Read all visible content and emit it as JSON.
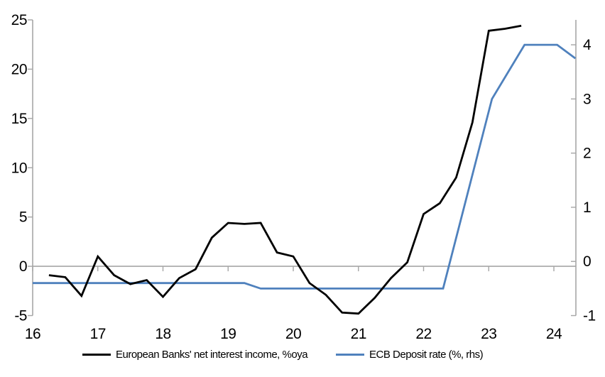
{
  "chart_data": {
    "type": "line",
    "legend_position": "bottom",
    "grid": false,
    "zero_line": true,
    "x_axis": {
      "tick_labels": [
        "16",
        "17",
        "18",
        "19",
        "20",
        "21",
        "22",
        "23",
        "24"
      ],
      "tick_values": [
        16,
        17,
        18,
        19,
        20,
        21,
        22,
        23,
        24
      ],
      "range": [
        16,
        24.38
      ]
    },
    "left_axis": {
      "tick_labels": [
        "-5",
        "0",
        "5",
        "10",
        "15",
        "20",
        "25"
      ],
      "tick_values": [
        -5,
        0,
        5,
        10,
        15,
        20,
        25
      ],
      "range": [
        -5,
        25
      ]
    },
    "right_axis": {
      "tick_labels": [
        "-1",
        "0",
        "1",
        "2",
        "3",
        "4"
      ],
      "tick_values": [
        -1,
        0,
        1,
        2,
        3,
        4
      ],
      "range": [
        -1,
        4.46
      ]
    },
    "series": [
      {
        "name": "European Banks' net interest income, %oya",
        "axis": "left",
        "color": "#000000",
        "points": [
          [
            16.25,
            -0.9
          ],
          [
            16.5,
            -1.1
          ],
          [
            16.75,
            -3.0
          ],
          [
            17.0,
            1.0
          ],
          [
            17.25,
            -0.9
          ],
          [
            17.5,
            -1.8
          ],
          [
            17.75,
            -1.4
          ],
          [
            18.0,
            -3.1
          ],
          [
            18.25,
            -1.2
          ],
          [
            18.5,
            -0.3
          ],
          [
            18.75,
            2.9
          ],
          [
            19.0,
            4.4
          ],
          [
            19.25,
            4.3
          ],
          [
            19.5,
            4.4
          ],
          [
            19.75,
            1.4
          ],
          [
            20.0,
            1.0
          ],
          [
            20.25,
            -1.7
          ],
          [
            20.5,
            -2.9
          ],
          [
            20.75,
            -4.7
          ],
          [
            21.0,
            -4.8
          ],
          [
            21.25,
            -3.2
          ],
          [
            21.5,
            -1.2
          ],
          [
            21.75,
            0.4
          ],
          [
            22.0,
            5.3
          ],
          [
            22.25,
            6.4
          ],
          [
            22.5,
            9.0
          ],
          [
            22.75,
            14.6
          ],
          [
            23.0,
            23.9
          ],
          [
            23.25,
            24.1
          ],
          [
            23.5,
            24.4
          ]
        ]
      },
      {
        "name": "ECB Deposit rate (%, rhs)",
        "axis": "right",
        "color": "#4f81bd",
        "points": [
          [
            16.0,
            -0.4
          ],
          [
            19.25,
            -0.4
          ],
          [
            19.5,
            -0.5
          ],
          [
            22.3,
            -0.5
          ],
          [
            23.05,
            3.0
          ],
          [
            23.55,
            4.0
          ],
          [
            24.05,
            4.0
          ],
          [
            24.33,
            3.75
          ]
        ]
      }
    ],
    "colors": {
      "axis": "#a6a6a6",
      "text": "#000000",
      "background": "#ffffff"
    }
  }
}
